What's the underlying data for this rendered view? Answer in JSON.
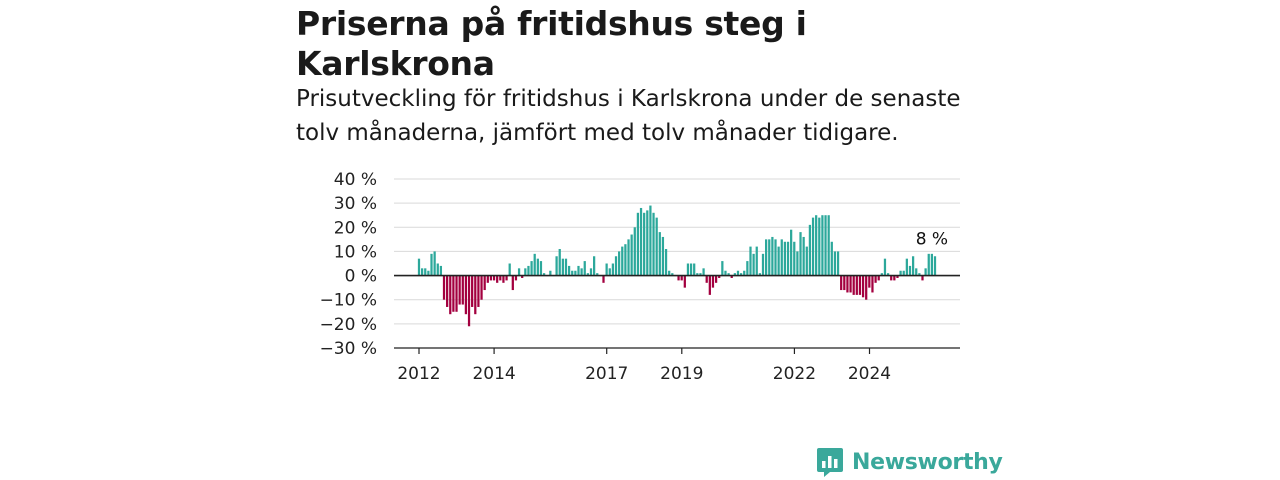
{
  "title": "Priserna på fritidshus steg i Karlskrona",
  "subtitle": "Prisutveckling för fritidshus i Karlskrona under de senaste tolv månaderna, jämfört med tolv månader tidigare.",
  "brand": "Newsworthy",
  "colors": {
    "positive": "#2ca89b",
    "negative": "#a3003f",
    "grid": "#d9d9d9",
    "axis": "#222222",
    "brand": "#3aa89b"
  },
  "chart_data": {
    "type": "bar",
    "ylim": [
      -30,
      40
    ],
    "yticks": [
      40,
      30,
      20,
      10,
      0,
      -10,
      -20,
      -30
    ],
    "ytick_labels": [
      "40 %",
      "30 %",
      "20 %",
      "10 %",
      "0 %",
      "−10 %",
      "−20 %",
      "−30 %"
    ],
    "xtick_labels": [
      "2012",
      "2014",
      "2017",
      "2019",
      "2022",
      "2024"
    ],
    "xtick_values": [
      2012.0,
      2014.0,
      2017.0,
      2019.0,
      2022.0,
      2024.0
    ],
    "x_start": 2012.0,
    "x_step": 0.0833,
    "annotation": {
      "label": "8 %"
    },
    "values": [
      7,
      3,
      3,
      2,
      9,
      10,
      5,
      4,
      -10,
      -13,
      -16,
      -15,
      -15,
      -12,
      -12,
      -16,
      -21,
      -13,
      -16,
      -13,
      -10,
      -6,
      -3,
      -2,
      -2,
      -3,
      -2,
      -3,
      -2,
      5,
      -6,
      -2,
      3,
      -1,
      3,
      4,
      6,
      9,
      7,
      6,
      1,
      0,
      2,
      0,
      8,
      11,
      7,
      7,
      4,
      2,
      2,
      4,
      3,
      6,
      1,
      3,
      8,
      1,
      0,
      -3,
      5,
      3,
      5,
      8,
      10,
      12,
      13,
      15,
      17,
      20,
      26,
      28,
      26,
      27,
      29,
      26,
      24,
      18,
      16,
      11,
      2,
      1,
      0,
      -2,
      -2,
      -5,
      5,
      5,
      5,
      1,
      1,
      3,
      -3,
      -8,
      -5,
      -3,
      -1,
      6,
      2,
      1,
      -1,
      1,
      2,
      1,
      2,
      6,
      12,
      9,
      12,
      1,
      9,
      15,
      15,
      16,
      15,
      12,
      15,
      14,
      14,
      19,
      14,
      10,
      18,
      16,
      12,
      21,
      24,
      25,
      24,
      25,
      25,
      25,
      14,
      10,
      10,
      -6,
      -6,
      -7,
      -7,
      -8,
      -8,
      -8,
      -9,
      -10,
      -5,
      -7,
      -3,
      -2,
      1,
      7,
      1,
      -2,
      -2,
      -1,
      2,
      2,
      7,
      4,
      8,
      3,
      1,
      -2,
      3,
      9,
      9,
      8
    ]
  }
}
